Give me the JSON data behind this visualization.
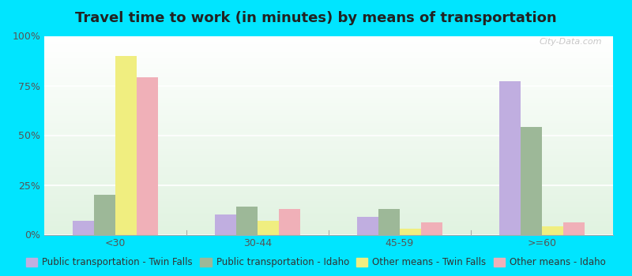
{
  "title": "Travel time to work (in minutes) by means of transportation",
  "categories": [
    "<30",
    "30-44",
    "45-59",
    ">=60"
  ],
  "series": {
    "Public transportation - Twin Falls": [
      7,
      10,
      9,
      77
    ],
    "Public transportation - Idaho": [
      20,
      14,
      13,
      54
    ],
    "Other means - Twin Falls": [
      90,
      7,
      3,
      4
    ],
    "Other means - Idaho": [
      79,
      13,
      6,
      6
    ]
  },
  "colors": {
    "Public transportation - Twin Falls": "#c0aee0",
    "Public transportation - Idaho": "#9db898",
    "Other means - Twin Falls": "#f0ee80",
    "Other means - Idaho": "#f0b0b8"
  },
  "ylim": [
    0,
    100
  ],
  "yticks": [
    0,
    25,
    50,
    75,
    100
  ],
  "ytick_labels": [
    "0%",
    "25%",
    "50%",
    "75%",
    "100%"
  ],
  "background_color": "#00e5ff",
  "title_fontsize": 13,
  "legend_fontsize": 8.5,
  "tick_fontsize": 9,
  "bar_width": 0.15,
  "watermark": "City-Data.com"
}
